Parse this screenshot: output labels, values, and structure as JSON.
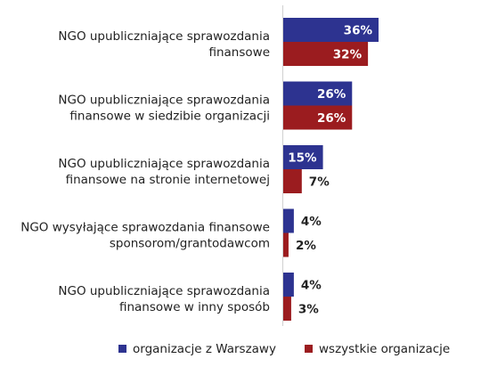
{
  "chart_data": {
    "type": "bar",
    "orientation": "horizontal",
    "categories": [
      [
        "NGO upubliczniające sprawozdania",
        "finansowe"
      ],
      [
        "NGO upubliczniające sprawozdania",
        "finansowe w siedzibie organizacji"
      ],
      [
        "NGO upubliczniające sprawozdania",
        "finansowe na stronie internetowej"
      ],
      [
        "NGO wysyłające sprawozdania finansowe",
        "sponsorom/grantodawcom"
      ],
      [
        "NGO upubliczniające sprawozdania",
        "finansowe w inny sposób"
      ]
    ],
    "series": [
      {
        "name": "organizacje z Warszawy",
        "color": "#2d3390",
        "values": [
          36,
          26,
          15,
          4,
          4
        ],
        "labels": [
          "36%",
          "26%",
          "15%",
          "4%",
          "4%"
        ]
      },
      {
        "name": "wszystkie organizacje",
        "color": "#9b1c1f",
        "values": [
          32,
          26,
          7,
          2,
          3
        ],
        "labels": [
          "32%",
          "26%",
          "7%",
          "2%",
          "3%"
        ]
      }
    ],
    "xlim": [
      0,
      100
    ],
    "unit": "%",
    "grid": false,
    "legend_position": "bottom"
  }
}
